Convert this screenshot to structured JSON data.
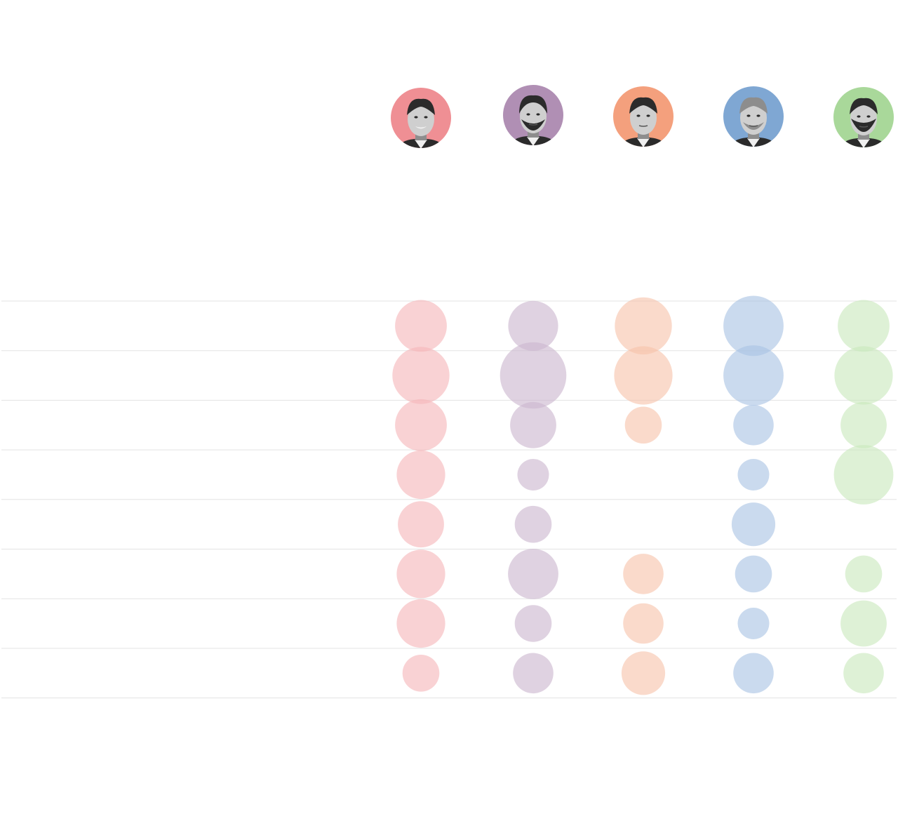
{
  "chart_data": {
    "type": "bubble",
    "title": "",
    "columns": [
      {
        "avatar_color": "#ef8f94",
        "bubble_color": "#f5b6ba",
        "portrait": "short-dark-hair-smiling"
      },
      {
        "avatar_color": "#b08fb4",
        "bubble_color": "#cbb6cf",
        "portrait": "ponytail-beard"
      },
      {
        "avatar_color": "#f4a07d",
        "bubble_color": "#f7c3ab",
        "portrait": "short-hair-shaved"
      },
      {
        "avatar_color": "#7fa7d3",
        "bubble_color": "#a9c4e3",
        "portrait": "short-hair-stubble"
      },
      {
        "avatar_color": "#a9d89a",
        "bubble_color": "#c9e8bd",
        "portrait": "full-beard"
      }
    ],
    "rows": 8,
    "values": [
      [
        0.59,
        0.55,
        0.72,
        0.8,
        0.59
      ],
      [
        0.72,
        0.97,
        0.75,
        0.8,
        0.75
      ],
      [
        0.59,
        0.47,
        0.3,
        0.36,
        0.47
      ],
      [
        0.52,
        0.22,
        0.0,
        0.22,
        0.78
      ],
      [
        0.47,
        0.3,
        0.0,
        0.42,
        0.0
      ],
      [
        0.52,
        0.56,
        0.36,
        0.3,
        0.3
      ],
      [
        0.52,
        0.3,
        0.36,
        0.22,
        0.47
      ],
      [
        0.3,
        0.36,
        0.42,
        0.36,
        0.36
      ]
    ],
    "value_scale_max": 1.0,
    "grid": true,
    "legend": "none"
  }
}
